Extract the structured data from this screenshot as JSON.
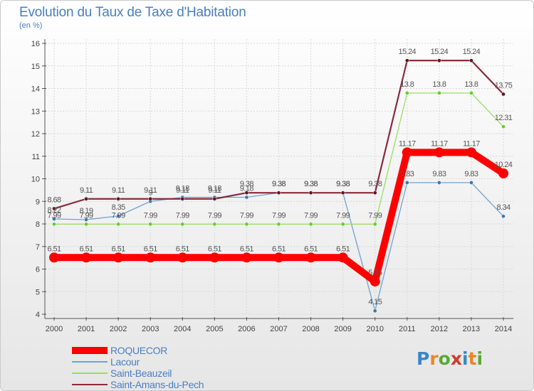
{
  "title": "Evolution du Taux de Taxe d'Habitation",
  "unit_label": "(en %)",
  "logo": {
    "text": "Proxiti",
    "letters": [
      {
        "char": "P",
        "color": "#3a86c8"
      },
      {
        "char": "r",
        "color": "#e8862a"
      },
      {
        "char": "o",
        "color": "#5aa83a"
      },
      {
        "char": "x",
        "color": "#d23a2a"
      },
      {
        "char": "i",
        "color": "#3a86c8"
      },
      {
        "char": "t",
        "color": "#e8862a"
      },
      {
        "char": "i",
        "color": "#5aa83a"
      }
    ]
  },
  "chart_data": {
    "type": "line",
    "title": "Evolution du Taux de Taxe d'Habitation",
    "ylabel": "(en %)",
    "xlabel": "",
    "x": [
      2000,
      2001,
      2002,
      2003,
      2004,
      2005,
      2006,
      2007,
      2008,
      2009,
      2010,
      2011,
      2012,
      2013,
      2014
    ],
    "ylim": [
      4,
      16
    ],
    "yticks": [
      4,
      5,
      6,
      7,
      8,
      9,
      10,
      11,
      12,
      13,
      14,
      15,
      16
    ],
    "grid": true,
    "legend_position": "bottom-left",
    "series": [
      {
        "name": "ROQUECOR",
        "color": "#ff0000",
        "marker_color": "#ff0000",
        "values": [
          6.51,
          6.51,
          6.51,
          6.51,
          6.51,
          6.51,
          6.51,
          6.51,
          6.51,
          6.51,
          5.45,
          11.17,
          11.17,
          11.17,
          10.24
        ],
        "labels": [
          "6.51",
          "6.51",
          "6.51",
          "6.51",
          "6.51",
          "6.51",
          "6.51",
          "6.51",
          "6.51",
          "6.51",
          "5.45",
          "11.17",
          "11.17",
          "11.17",
          "10.24"
        ]
      },
      {
        "name": "Lacour",
        "color": "#6fa3d0",
        "marker_color": "#3a78b8",
        "values": [
          8.22,
          8.19,
          8.35,
          9.0,
          9.18,
          9.18,
          9.18,
          9.38,
          9.38,
          9.38,
          4.15,
          9.83,
          9.83,
          9.83,
          8.34
        ],
        "labels": [
          "8.22",
          "8.19",
          "8.35",
          "9",
          "9.18",
          "9.18",
          "9.18",
          "9.38",
          "9.38",
          "9.38",
          "4.15",
          "9.83",
          "9.83",
          "9.83",
          "8.34"
        ]
      },
      {
        "name": "Saint-Beauzeil",
        "color": "#99dd66",
        "marker_color": "#66cc33",
        "values": [
          7.99,
          7.99,
          7.99,
          7.99,
          7.99,
          7.99,
          7.99,
          7.99,
          7.99,
          7.99,
          7.99,
          13.8,
          13.8,
          13.8,
          12.31
        ],
        "labels": [
          "7.99",
          "7.99",
          "7.99",
          "7.99",
          "7.99",
          "7.99",
          "7.99",
          "7.99",
          "7.99",
          "7.99",
          "7.99",
          "13.8",
          "13.8",
          "13.8",
          "12.31"
        ]
      },
      {
        "name": "Saint-Amans-du-Pech",
        "color": "#8b2a3a",
        "marker_color": "#5a1a22",
        "values": [
          8.68,
          9.11,
          9.11,
          9.11,
          9.11,
          9.11,
          9.38,
          9.38,
          9.38,
          9.38,
          9.38,
          15.24,
          15.24,
          15.24,
          13.75
        ],
        "labels": [
          "8.68",
          "9.11",
          "9.11",
          "9.11",
          "9.11",
          "9.11",
          "9.38",
          "9.38",
          "9.38",
          "9.38",
          "9.38",
          "15.24",
          "15.24",
          "15.24",
          "13.75"
        ]
      }
    ]
  }
}
